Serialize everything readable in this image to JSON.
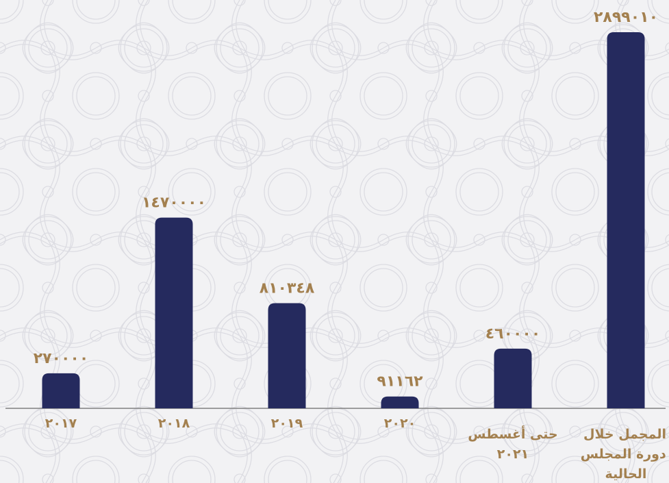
{
  "colors": {
    "bar": "#252a5e",
    "label": "#a3804f",
    "axis": "#808080",
    "background": "#f2f2f4",
    "pattern": "#dcdce2"
  },
  "chart_data": {
    "type": "bar",
    "categories": [
      [
        "٢٠١٧"
      ],
      [
        "٢٠١٨"
      ],
      [
        "٢٠١٩"
      ],
      [
        "٢٠٢٠"
      ],
      [
        "حتى أغسطس",
        "٢٠٢١"
      ],
      [
        "المجمل خلال",
        "دورة المجلس",
        "الحالية"
      ]
    ],
    "values": [
      270000,
      1470000,
      810348,
      91162,
      460000,
      2899010
    ],
    "value_labels": [
      "٢٧٠٠٠٠",
      "١٤٧٠٠٠٠",
      "٨١٠٣٤٨",
      "٩١١٦٢",
      "٤٦٠٠٠٠",
      "٢٨٩٩٠١٠"
    ],
    "ylim": [
      0,
      2899010
    ],
    "grid": false,
    "legend": "none"
  }
}
